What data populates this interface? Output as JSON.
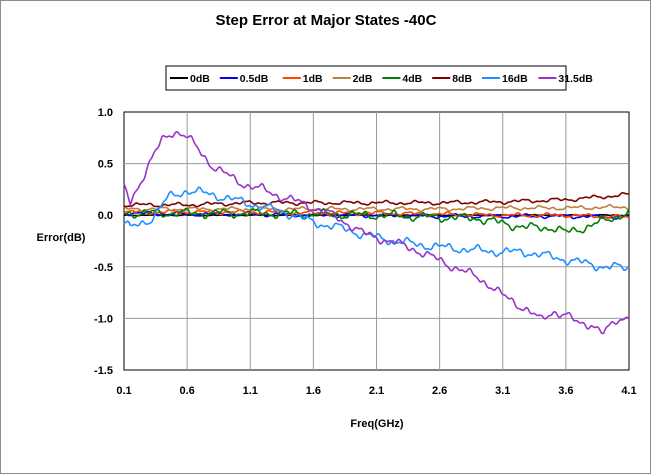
{
  "chart_data": {
    "type": "line",
    "title": "Step Error at Major States -40C",
    "xlabel": "Freq(GHz)",
    "ylabel": "Error(dB)",
    "xlim": [
      0.1,
      4.1
    ],
    "ylim": [
      -1.5,
      1.0
    ],
    "grid": true,
    "legend_position": "top",
    "x_ticks": [
      "0.1",
      "0.6",
      "1.1",
      "1.6",
      "2.1",
      "2.6",
      "3.1",
      "3.6",
      "4.1"
    ],
    "y_ticks": [
      "1.0",
      "0.5",
      "0.0",
      "-0.5",
      "-1.0",
      "-1.5"
    ],
    "x_tick_values": [
      0.1,
      0.6,
      1.1,
      1.6,
      2.1,
      2.6,
      3.1,
      3.6,
      4.1
    ],
    "y_tick_values": [
      1.0,
      0.5,
      0.0,
      -0.5,
      -1.0,
      -1.5
    ],
    "series": [
      {
        "name": "0dB",
        "color": "#000000",
        "points": [
          [
            0.1,
            0.0
          ],
          [
            0.6,
            0.0
          ],
          [
            1.1,
            0.0
          ],
          [
            1.6,
            0.0
          ],
          [
            2.1,
            0.0
          ],
          [
            2.6,
            0.0
          ],
          [
            3.1,
            0.0
          ],
          [
            3.6,
            0.0
          ],
          [
            4.1,
            0.0
          ]
        ]
      },
      {
        "name": "0.5dB",
        "color": "#0000ff",
        "points": [
          [
            0.1,
            0.02
          ],
          [
            0.6,
            0.01
          ],
          [
            1.1,
            0.01
          ],
          [
            1.6,
            0.0
          ],
          [
            2.1,
            0.0
          ],
          [
            2.6,
            -0.01
          ],
          [
            3.1,
            -0.01
          ],
          [
            3.6,
            -0.01
          ],
          [
            4.1,
            -0.02
          ]
        ]
      },
      {
        "name": "1dB",
        "color": "#ff4500",
        "points": [
          [
            0.1,
            0.03
          ],
          [
            0.6,
            0.03
          ],
          [
            1.1,
            0.03
          ],
          [
            1.6,
            0.02
          ],
          [
            2.1,
            0.02
          ],
          [
            2.6,
            0.01
          ],
          [
            3.1,
            0.0
          ],
          [
            3.6,
            0.0
          ],
          [
            4.1,
            -0.02
          ]
        ]
      },
      {
        "name": "2dB",
        "color": "#c08040",
        "points": [
          [
            0.1,
            0.06
          ],
          [
            0.6,
            0.06
          ],
          [
            1.1,
            0.06
          ],
          [
            1.6,
            0.06
          ],
          [
            2.1,
            0.06
          ],
          [
            2.6,
            0.06
          ],
          [
            3.1,
            0.07
          ],
          [
            3.6,
            0.07
          ],
          [
            4.1,
            0.08
          ]
        ]
      },
      {
        "name": "4dB",
        "color": "#008000",
        "points": [
          [
            0.1,
            0.02
          ],
          [
            0.6,
            0.02
          ],
          [
            1.1,
            0.02
          ],
          [
            1.6,
            0.01
          ],
          [
            2.1,
            0.0
          ],
          [
            2.6,
            -0.02
          ],
          [
            2.9,
            -0.03
          ],
          [
            3.1,
            -0.08
          ],
          [
            3.3,
            -0.12
          ],
          [
            3.5,
            -0.12
          ],
          [
            3.6,
            -0.17
          ],
          [
            3.8,
            -0.1
          ],
          [
            4.1,
            0.03
          ]
        ]
      },
      {
        "name": "8dB",
        "color": "#800000",
        "points": [
          [
            0.1,
            0.1
          ],
          [
            0.6,
            0.1
          ],
          [
            1.1,
            0.12
          ],
          [
            1.6,
            0.12
          ],
          [
            2.1,
            0.12
          ],
          [
            2.6,
            0.12
          ],
          [
            3.1,
            0.13
          ],
          [
            3.6,
            0.15
          ],
          [
            4.1,
            0.2
          ]
        ]
      },
      {
        "name": "16dB",
        "color": "#1e90ff",
        "points": [
          [
            0.1,
            -0.05
          ],
          [
            0.15,
            -0.13
          ],
          [
            0.3,
            -0.05
          ],
          [
            0.45,
            0.17
          ],
          [
            0.6,
            0.24
          ],
          [
            0.8,
            0.2
          ],
          [
            1.0,
            0.14
          ],
          [
            1.2,
            0.08
          ],
          [
            1.4,
            0.02
          ],
          [
            1.6,
            -0.07
          ],
          [
            1.8,
            -0.12
          ],
          [
            2.1,
            -0.22
          ],
          [
            2.4,
            -0.28
          ],
          [
            2.7,
            -0.32
          ],
          [
            3.0,
            -0.35
          ],
          [
            3.3,
            -0.36
          ],
          [
            3.6,
            -0.43
          ],
          [
            3.9,
            -0.5
          ],
          [
            4.1,
            -0.51
          ]
        ]
      },
      {
        "name": "31.5dB",
        "color": "#9932cc",
        "points": [
          [
            0.1,
            0.27
          ],
          [
            0.15,
            0.12
          ],
          [
            0.2,
            0.25
          ],
          [
            0.3,
            0.5
          ],
          [
            0.4,
            0.72
          ],
          [
            0.5,
            0.82
          ],
          [
            0.6,
            0.76
          ],
          [
            0.7,
            0.62
          ],
          [
            0.8,
            0.48
          ],
          [
            0.9,
            0.4
          ],
          [
            1.0,
            0.33
          ],
          [
            1.1,
            0.28
          ],
          [
            1.2,
            0.25
          ],
          [
            1.3,
            0.2
          ],
          [
            1.5,
            0.12
          ],
          [
            1.7,
            0.03
          ],
          [
            1.9,
            -0.1
          ],
          [
            2.0,
            -0.18
          ],
          [
            2.2,
            -0.25
          ],
          [
            2.4,
            -0.33
          ],
          [
            2.6,
            -0.44
          ],
          [
            2.8,
            -0.55
          ],
          [
            2.9,
            -0.6
          ],
          [
            3.0,
            -0.68
          ],
          [
            3.1,
            -0.78
          ],
          [
            3.2,
            -0.85
          ],
          [
            3.3,
            -0.92
          ],
          [
            3.4,
            -1.02
          ],
          [
            3.5,
            -0.93
          ],
          [
            3.6,
            -0.97
          ],
          [
            3.7,
            -1.05
          ],
          [
            3.8,
            -1.05
          ],
          [
            3.9,
            -1.15
          ],
          [
            4.0,
            -1.02
          ],
          [
            4.1,
            -0.97
          ]
        ]
      }
    ]
  }
}
